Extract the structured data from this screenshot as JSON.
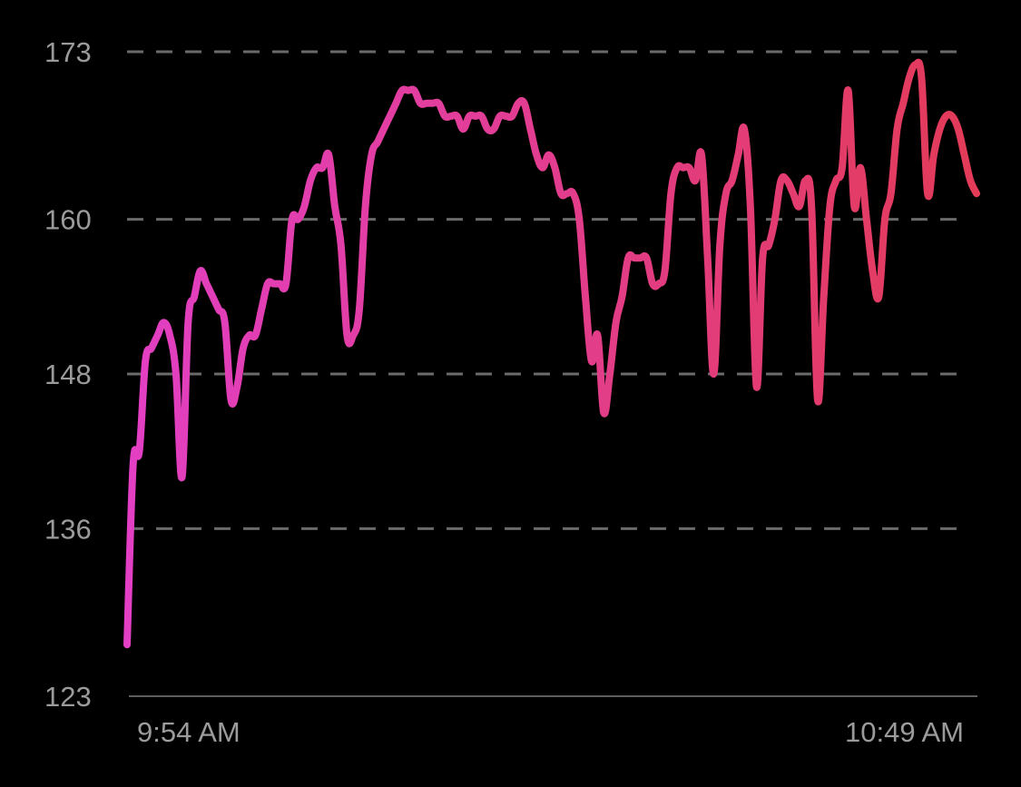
{
  "chart_data": {
    "type": "line",
    "title": "",
    "xlabel": "",
    "ylabel": "",
    "ylim": [
      123,
      173
    ],
    "y_ticks": [
      "173",
      "160",
      "148",
      "136",
      "123"
    ],
    "x_tick_labels": [
      "9:54 AM",
      "10:49 AM"
    ],
    "grid": true,
    "gradient_colors": [
      "#e23fc4",
      "#e33b58"
    ],
    "series": [
      {
        "values": [
          127,
          141,
          142,
          149,
          150,
          151,
          152,
          151,
          148,
          140,
          152,
          154,
          156,
          155,
          154,
          153,
          152,
          146,
          147,
          150,
          151,
          151,
          153,
          155,
          155,
          155,
          155,
          160,
          160,
          161,
          163,
          164,
          164,
          165,
          161,
          158,
          151,
          151,
          153,
          161,
          165,
          166,
          167,
          168,
          169,
          170,
          170,
          170,
          169,
          169,
          169,
          169,
          168,
          168,
          168,
          167,
          168,
          168,
          168,
          167,
          167,
          168,
          168,
          168,
          169,
          169,
          167,
          165,
          164,
          165,
          164,
          162,
          162,
          162,
          160,
          154,
          149,
          151,
          145,
          148,
          152,
          154,
          157,
          157,
          157,
          157,
          155,
          155,
          156,
          162,
          164,
          164,
          164,
          163,
          165,
          157,
          148,
          158,
          162,
          163,
          165,
          167,
          161,
          147,
          157,
          158,
          160,
          163,
          163,
          162,
          161,
          163,
          161,
          146,
          154,
          161,
          163,
          164,
          170,
          161,
          164,
          160,
          156,
          154,
          160,
          162,
          167,
          169,
          171,
          172,
          171,
          162,
          165,
          167,
          168,
          168,
          167,
          165,
          163,
          162
        ]
      }
    ]
  }
}
